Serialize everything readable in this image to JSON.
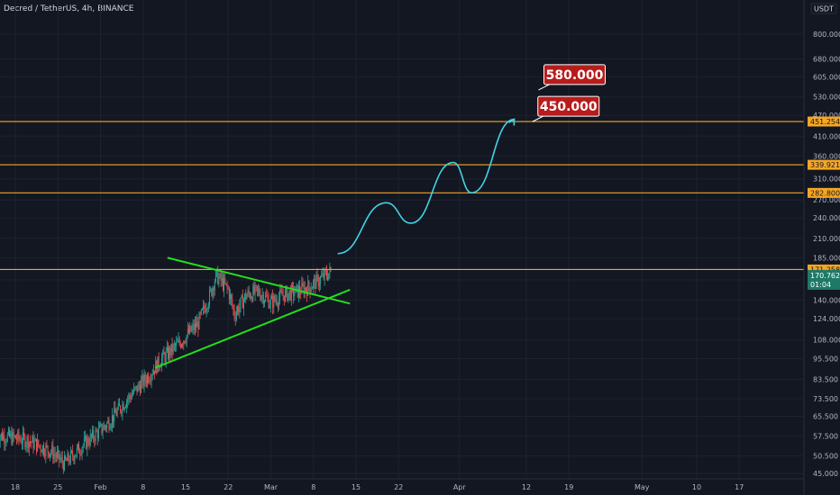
{
  "header": {
    "title": "Decred / TetherUS, 4h, BINANCE"
  },
  "colors": {
    "background": "#131722",
    "up": "#26a69a",
    "down": "#ef5350",
    "level": "#f5a623",
    "trendline": "#22e01c",
    "projection": "#3fd4e6",
    "callout_bg": "#b71c1c",
    "last_price_tag": "#1e7a67"
  },
  "chart_data": {
    "type": "candlestick",
    "scale": "log",
    "ylim": [
      43.5,
      1000
    ],
    "y_ticks": [
      "800.000",
      "680.000",
      "605.000",
      "530.000",
      "470.000",
      "410.000",
      "360.000",
      "310.000",
      "270.000",
      "240.000",
      "210.000",
      "185.000",
      "160.000",
      "140.000",
      "124.000",
      "108.000",
      "95.500",
      "83.500",
      "73.500",
      "65.500",
      "57.500",
      "50.500",
      "45.000"
    ],
    "y_tick_values": [
      800,
      680,
      605,
      530,
      470,
      410,
      360,
      310,
      270,
      240,
      210,
      185,
      160,
      140,
      124,
      108,
      95.5,
      83.5,
      73.5,
      65.5,
      57.5,
      50.5,
      45
    ],
    "currency_label": "USDT",
    "x_ticks": [
      "18",
      "25",
      "Feb",
      "8",
      "15",
      "22",
      "Mar",
      "8",
      "15",
      "22",
      "Apr",
      "12",
      "19",
      "May",
      "10",
      "17"
    ],
    "x_tick_dates": [
      "2021-01-18",
      "2021-01-25",
      "2021-02-01",
      "2021-02-08",
      "2021-02-15",
      "2021-02-22",
      "2021-03-01",
      "2021-03-08",
      "2021-03-15",
      "2021-03-22",
      "2021-04-01",
      "2021-04-12",
      "2021-04-19",
      "2021-05-01",
      "2021-05-10",
      "2021-05-17"
    ],
    "horizontal_levels": [
      {
        "label": "451.254",
        "value": 451.254
      },
      {
        "label": "339.921",
        "value": 339.921
      },
      {
        "label": "282.800",
        "value": 282.8
      },
      {
        "label": "171.258",
        "value": 171.258
      }
    ],
    "last_price": {
      "label": "170.762",
      "value": 170.762,
      "countdown": "01:04"
    },
    "price_path": [
      [
        "2021-01-15",
        58
      ],
      [
        "2021-01-20",
        56
      ],
      [
        "2021-01-24",
        52
      ],
      [
        "2021-01-26",
        48
      ],
      [
        "2021-01-29",
        54
      ],
      [
        "2021-02-02",
        62
      ],
      [
        "2021-02-05",
        72
      ],
      [
        "2021-02-08",
        82
      ],
      [
        "2021-02-11",
        95
      ],
      [
        "2021-02-14",
        106
      ],
      [
        "2021-02-17",
        120
      ],
      [
        "2021-02-19",
        145
      ],
      [
        "2021-02-20",
        165
      ],
      [
        "2021-02-22",
        150
      ],
      [
        "2021-02-23",
        128
      ],
      [
        "2021-02-25",
        145
      ],
      [
        "2021-02-27",
        148
      ],
      [
        "2021-03-01",
        138
      ],
      [
        "2021-03-03",
        145
      ],
      [
        "2021-03-05",
        148
      ],
      [
        "2021-03-07",
        152
      ],
      [
        "2021-03-09",
        160
      ],
      [
        "2021-03-11",
        170
      ]
    ],
    "triangle": {
      "upper": [
        [
          "2021-02-12",
          185
        ],
        [
          "2021-03-14",
          137
        ]
      ],
      "lower": [
        [
          "2021-02-10",
          90
        ],
        [
          "2021-03-14",
          150
        ]
      ]
    },
    "projection_path": [
      [
        "2021-03-12",
        190
      ],
      [
        "2021-03-20",
        265
      ],
      [
        "2021-03-24",
        232
      ],
      [
        "2021-03-31",
        345
      ],
      [
        "2021-04-03",
        283
      ],
      [
        "2021-04-10",
        458
      ]
    ],
    "callouts": [
      {
        "text": "450.000",
        "anchor": [
          "2021-04-13",
          451
        ]
      },
      {
        "text": "580.000",
        "anchor": [
          "2021-04-14",
          555
        ]
      }
    ]
  }
}
